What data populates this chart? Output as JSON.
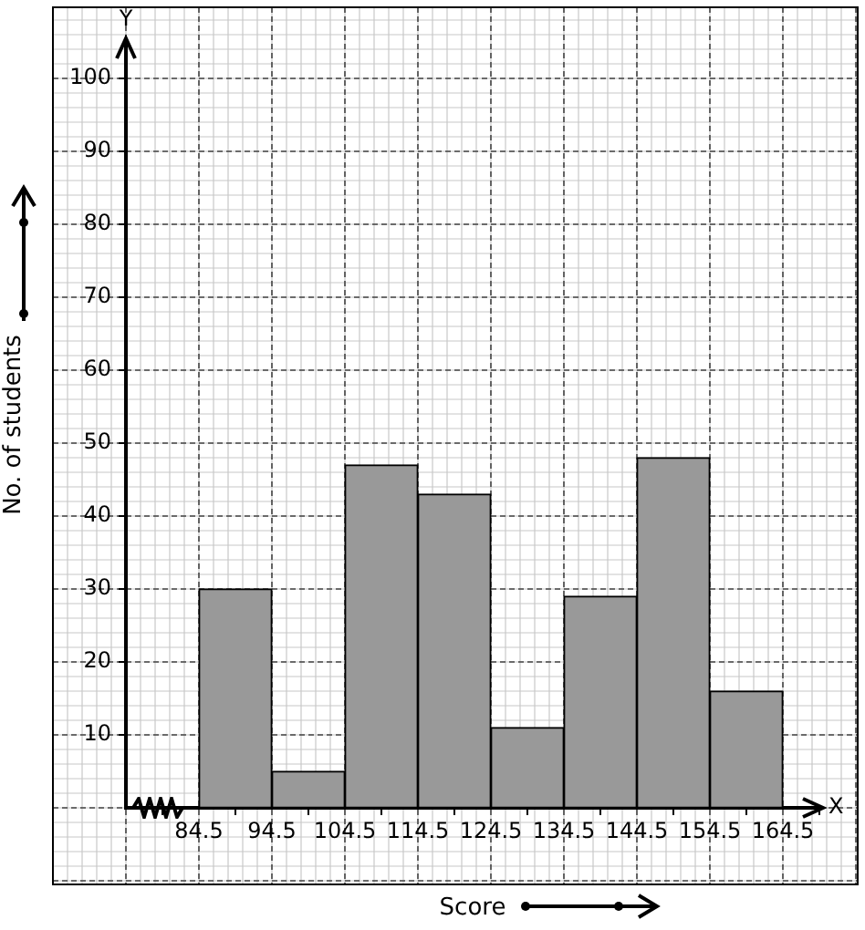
{
  "chart_data": {
    "type": "histogram",
    "xlabel": "Score",
    "ylabel": "No. of students",
    "annotations": [
      "X",
      "Y"
    ],
    "bins": [
      84.5,
      94.5,
      104.5,
      114.5,
      124.5,
      134.5,
      144.5,
      154.5,
      164.5
    ],
    "values": [
      30,
      5,
      47,
      43,
      11,
      29,
      48,
      16
    ],
    "color": "#999999",
    "xlim": [
      74.5,
      169.5
    ],
    "xticks": [
      84.5,
      94.5,
      104.5,
      114.5,
      124.5,
      134.5,
      144.5,
      154.5,
      164.5
    ],
    "ylim": [
      0,
      105
    ],
    "yticks": [
      10,
      20,
      30,
      40,
      50,
      60,
      70,
      80,
      90,
      100
    ],
    "grid": true,
    "legend": false
  }
}
